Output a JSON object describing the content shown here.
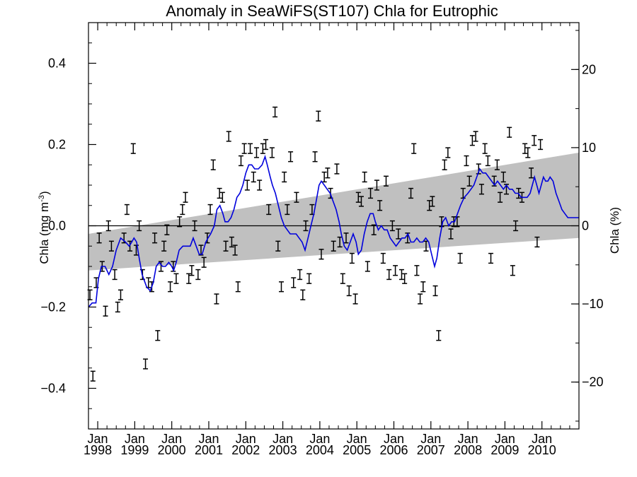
{
  "chart_data": {
    "type": "scatter",
    "title": "Anomaly in SeaWiFS(ST107) Chla for Eutrophic",
    "ylabel_left_main": "Chla (mg m",
    "ylabel_left_sup": "-3",
    "ylabel_left_close": ")",
    "ylabel_right": "Chla (%)",
    "x_range": [
      1997.75,
      2011.0
    ],
    "ylim": [
      -0.5,
      0.5
    ],
    "ylim_right": [
      -26,
      26
    ],
    "yticks_left": [
      {
        "value": -0.4,
        "label": "−0.4"
      },
      {
        "value": -0.2,
        "label": "−0.2"
      },
      {
        "value": 0.0,
        "label": "0.0"
      },
      {
        "value": 0.2,
        "label": "0.2"
      },
      {
        "value": 0.4,
        "label": "0.4"
      }
    ],
    "yticks_right": [
      {
        "value": -20,
        "label": "−20"
      },
      {
        "value": -10,
        "label": "−10"
      },
      {
        "value": 0,
        "label": "0"
      },
      {
        "value": 10,
        "label": "10"
      },
      {
        "value": 20,
        "label": "20"
      }
    ],
    "xticks": [
      {
        "value": 1998.0,
        "month": "Jan",
        "year": "1998"
      },
      {
        "value": 1999.0,
        "month": "Jan",
        "year": "1999"
      },
      {
        "value": 2000.0,
        "month": "Jan",
        "year": "2000"
      },
      {
        "value": 2001.0,
        "month": "Jan",
        "year": "2001"
      },
      {
        "value": 2002.0,
        "month": "Jan",
        "year": "2002"
      },
      {
        "value": 2003.0,
        "month": "Jan",
        "year": "2003"
      },
      {
        "value": 2004.0,
        "month": "Jan",
        "year": "2004"
      },
      {
        "value": 2005.0,
        "month": "Jan",
        "year": "2005"
      },
      {
        "value": 2006.0,
        "month": "Jan",
        "year": "2006"
      },
      {
        "value": 2007.0,
        "month": "Jan",
        "year": "2007"
      },
      {
        "value": 2008.0,
        "month": "Jan",
        "year": "2008"
      },
      {
        "value": 2009.0,
        "month": "Jan",
        "year": "2009"
      },
      {
        "value": 2010.0,
        "month": "Jan",
        "year": "2010"
      }
    ],
    "zero_line": 0.0,
    "trend_band": {
      "x": [
        1997.75,
        2011.0
      ],
      "upper": [
        -0.02,
        0.18
      ],
      "lower": [
        -0.11,
        -0.03
      ],
      "color": "#c0c0c0"
    },
    "points": [
      [
        1997.79,
        -0.17
      ],
      [
        1997.87,
        -0.37
      ],
      [
        1997.96,
        -0.14
      ],
      [
        1998.04,
        -0.03
      ],
      [
        1998.12,
        -0.1
      ],
      [
        1998.21,
        -0.21
      ],
      [
        1998.29,
        0.0
      ],
      [
        1998.37,
        -0.05
      ],
      [
        1998.46,
        -0.12
      ],
      [
        1998.54,
        -0.2
      ],
      [
        1998.62,
        -0.17
      ],
      [
        1998.71,
        -0.03
      ],
      [
        1998.79,
        0.04
      ],
      [
        1998.87,
        -0.05
      ],
      [
        1998.96,
        0.19
      ],
      [
        1999.04,
        -0.06
      ],
      [
        1999.12,
        0.0
      ],
      [
        1999.21,
        -0.12
      ],
      [
        1999.29,
        -0.34
      ],
      [
        1999.37,
        -0.14
      ],
      [
        1999.46,
        -0.15
      ],
      [
        1999.54,
        -0.03
      ],
      [
        1999.62,
        -0.27
      ],
      [
        1999.71,
        -0.1
      ],
      [
        1999.79,
        -0.05
      ],
      [
        1999.87,
        -0.01
      ],
      [
        1999.96,
        -0.15
      ],
      [
        2000.04,
        -0.1
      ],
      [
        2000.12,
        -0.13
      ],
      [
        2000.21,
        0.01
      ],
      [
        2000.29,
        0.04
      ],
      [
        2000.37,
        0.07
      ],
      [
        2000.46,
        -0.13
      ],
      [
        2000.54,
        -0.11
      ],
      [
        2000.62,
        0.0
      ],
      [
        2000.71,
        -0.12
      ],
      [
        2000.79,
        -0.06
      ],
      [
        2000.87,
        -0.09
      ],
      [
        2000.96,
        -0.03
      ],
      [
        2001.04,
        0.04
      ],
      [
        2001.12,
        0.15
      ],
      [
        2001.21,
        -0.18
      ],
      [
        2001.29,
        0.08
      ],
      [
        2001.37,
        0.07
      ],
      [
        2001.46,
        -0.05
      ],
      [
        2001.54,
        0.22
      ],
      [
        2001.62,
        -0.04
      ],
      [
        2001.71,
        -0.06
      ],
      [
        2001.79,
        -0.15
      ],
      [
        2001.87,
        0.16
      ],
      [
        2001.96,
        0.19
      ],
      [
        2002.04,
        0.1
      ],
      [
        2002.12,
        0.19
      ],
      [
        2002.21,
        0.12
      ],
      [
        2002.29,
        0.18
      ],
      [
        2002.37,
        0.1
      ],
      [
        2002.46,
        0.19
      ],
      [
        2002.54,
        0.2
      ],
      [
        2002.62,
        0.04
      ],
      [
        2002.71,
        0.18
      ],
      [
        2002.79,
        0.28
      ],
      [
        2002.87,
        -0.05
      ],
      [
        2002.96,
        -0.15
      ],
      [
        2003.04,
        0.12
      ],
      [
        2003.12,
        0.04
      ],
      [
        2003.21,
        0.17
      ],
      [
        2003.29,
        -0.14
      ],
      [
        2003.37,
        0.07
      ],
      [
        2003.46,
        -0.12
      ],
      [
        2003.54,
        -0.17
      ],
      [
        2003.62,
        0.0
      ],
      [
        2003.71,
        -0.13
      ],
      [
        2003.79,
        0.04
      ],
      [
        2003.87,
        0.17
      ],
      [
        2003.96,
        0.27
      ],
      [
        2004.04,
        -0.07
      ],
      [
        2004.12,
        0.12
      ],
      [
        2004.21,
        0.13
      ],
      [
        2004.29,
        0.08
      ],
      [
        2004.37,
        -0.05
      ],
      [
        2004.46,
        0.14
      ],
      [
        2004.54,
        -0.04
      ],
      [
        2004.62,
        -0.13
      ],
      [
        2004.71,
        -0.03
      ],
      [
        2004.79,
        -0.16
      ],
      [
        2004.87,
        -0.08
      ],
      [
        2004.96,
        -0.18
      ],
      [
        2005.04,
        0.07
      ],
      [
        2005.12,
        0.06
      ],
      [
        2005.21,
        0.12
      ],
      [
        2005.29,
        -0.1
      ],
      [
        2005.37,
        0.08
      ],
      [
        2005.46,
        -0.01
      ],
      [
        2005.54,
        0.1
      ],
      [
        2005.62,
        0.05
      ],
      [
        2005.71,
        -0.08
      ],
      [
        2005.79,
        0.11
      ],
      [
        2005.87,
        -0.12
      ],
      [
        2005.96,
        0.0
      ],
      [
        2006.04,
        -0.11
      ],
      [
        2006.12,
        -0.02
      ],
      [
        2006.21,
        -0.12
      ],
      [
        2006.29,
        -0.13
      ],
      [
        2006.37,
        -0.03
      ],
      [
        2006.46,
        0.08
      ],
      [
        2006.54,
        0.19
      ],
      [
        2006.62,
        -0.11
      ],
      [
        2006.71,
        -0.18
      ],
      [
        2006.79,
        -0.15
      ],
      [
        2006.87,
        -0.05
      ],
      [
        2006.96,
        0.05
      ],
      [
        2007.04,
        0.06
      ],
      [
        2007.12,
        -0.16
      ],
      [
        2007.21,
        -0.27
      ],
      [
        2007.29,
        0.01
      ],
      [
        2007.37,
        0.15
      ],
      [
        2007.46,
        0.18
      ],
      [
        2007.54,
        -0.02
      ],
      [
        2007.62,
        0.01
      ],
      [
        2007.71,
        0.01
      ],
      [
        2007.79,
        -0.08
      ],
      [
        2007.87,
        0.08
      ],
      [
        2007.96,
        0.16
      ],
      [
        2008.04,
        0.11
      ],
      [
        2008.12,
        0.21
      ],
      [
        2008.21,
        0.22
      ],
      [
        2008.29,
        0.14
      ],
      [
        2008.37,
        0.09
      ],
      [
        2008.46,
        0.19
      ],
      [
        2008.54,
        0.16
      ],
      [
        2008.62,
        -0.08
      ],
      [
        2008.71,
        0.11
      ],
      [
        2008.79,
        0.15
      ],
      [
        2008.87,
        0.07
      ],
      [
        2008.96,
        0.12
      ],
      [
        2009.04,
        0.09
      ],
      [
        2009.12,
        0.23
      ],
      [
        2009.21,
        -0.11
      ],
      [
        2009.29,
        0.0
      ],
      [
        2009.37,
        0.08
      ],
      [
        2009.46,
        0.07
      ],
      [
        2009.54,
        0.19
      ],
      [
        2009.62,
        0.18
      ],
      [
        2009.71,
        0.13
      ],
      [
        2009.79,
        0.21
      ],
      [
        2009.87,
        -0.04
      ],
      [
        2009.96,
        0.2
      ]
    ],
    "point_error": 0.012,
    "running_mean": [
      [
        1997.75,
        -0.2
      ],
      [
        1997.85,
        -0.19
      ],
      [
        1997.95,
        -0.19
      ],
      [
        1998.02,
        -0.13
      ],
      [
        1998.1,
        -0.1
      ],
      [
        1998.2,
        -0.1
      ],
      [
        1998.3,
        -0.12
      ],
      [
        1998.4,
        -0.1
      ],
      [
        1998.5,
        -0.06
      ],
      [
        1998.62,
        -0.03
      ],
      [
        1998.75,
        -0.04
      ],
      [
        1998.85,
        -0.05
      ],
      [
        1998.92,
        -0.04
      ],
      [
        1998.98,
        -0.03
      ],
      [
        1999.05,
        -0.04
      ],
      [
        1999.12,
        -0.08
      ],
      [
        1999.2,
        -0.12
      ],
      [
        1999.32,
        -0.15
      ],
      [
        1999.42,
        -0.16
      ],
      [
        1999.5,
        -0.14
      ],
      [
        1999.58,
        -0.1
      ],
      [
        1999.66,
        -0.09
      ],
      [
        1999.75,
        -0.1
      ],
      [
        1999.83,
        -0.1
      ],
      [
        1999.92,
        -0.09
      ],
      [
        2000.0,
        -0.1
      ],
      [
        2000.05,
        -0.11
      ],
      [
        2000.12,
        -0.09
      ],
      [
        2000.2,
        -0.06
      ],
      [
        2000.3,
        -0.05
      ],
      [
        2000.4,
        -0.05
      ],
      [
        2000.5,
        -0.05
      ],
      [
        2000.58,
        -0.03
      ],
      [
        2000.66,
        -0.05
      ],
      [
        2000.74,
        -0.07
      ],
      [
        2000.82,
        -0.07
      ],
      [
        2000.92,
        -0.04
      ],
      [
        2000.98,
        -0.03
      ],
      [
        2001.05,
        -0.02
      ],
      [
        2001.15,
        0.0
      ],
      [
        2001.22,
        0.04
      ],
      [
        2001.3,
        0.05
      ],
      [
        2001.38,
        0.03
      ],
      [
        2001.44,
        0.01
      ],
      [
        2001.52,
        0.01
      ],
      [
        2001.6,
        0.02
      ],
      [
        2001.68,
        0.04
      ],
      [
        2001.76,
        0.07
      ],
      [
        2001.84,
        0.08
      ],
      [
        2001.92,
        0.1
      ],
      [
        2002.0,
        0.13
      ],
      [
        2002.08,
        0.15
      ],
      [
        2002.16,
        0.15
      ],
      [
        2002.24,
        0.14
      ],
      [
        2002.34,
        0.14
      ],
      [
        2002.44,
        0.15
      ],
      [
        2002.52,
        0.17
      ],
      [
        2002.58,
        0.15
      ],
      [
        2002.66,
        0.12
      ],
      [
        2002.72,
        0.1
      ],
      [
        2002.8,
        0.08
      ],
      [
        2002.88,
        0.05
      ],
      [
        2002.96,
        0.02
      ],
      [
        2003.04,
        0.0
      ],
      [
        2003.12,
        -0.01
      ],
      [
        2003.2,
        -0.02
      ],
      [
        2003.28,
        -0.02
      ],
      [
        2003.36,
        -0.02
      ],
      [
        2003.44,
        -0.03
      ],
      [
        2003.52,
        -0.04
      ],
      [
        2003.6,
        -0.06
      ],
      [
        2003.68,
        -0.03
      ],
      [
        2003.76,
        0.0
      ],
      [
        2003.84,
        0.03
      ],
      [
        2003.92,
        0.07
      ],
      [
        2003.98,
        0.1
      ],
      [
        2004.04,
        0.11
      ],
      [
        2004.12,
        0.1
      ],
      [
        2004.2,
        0.09
      ],
      [
        2004.28,
        0.08
      ],
      [
        2004.36,
        0.06
      ],
      [
        2004.44,
        0.04
      ],
      [
        2004.52,
        0.01
      ],
      [
        2004.58,
        -0.02
      ],
      [
        2004.66,
        -0.05
      ],
      [
        2004.74,
        -0.06
      ],
      [
        2004.82,
        -0.04
      ],
      [
        2004.9,
        -0.02
      ],
      [
        2004.98,
        -0.04
      ],
      [
        2005.04,
        -0.07
      ],
      [
        2005.12,
        -0.06
      ],
      [
        2005.2,
        -0.02
      ],
      [
        2005.28,
        0.01
      ],
      [
        2005.36,
        0.03
      ],
      [
        2005.44,
        0.03
      ],
      [
        2005.5,
        0.01
      ],
      [
        2005.58,
        -0.01
      ],
      [
        2005.66,
        0.0
      ],
      [
        2005.74,
        -0.01
      ],
      [
        2005.82,
        -0.01
      ],
      [
        2005.9,
        -0.03
      ],
      [
        2005.98,
        -0.04
      ],
      [
        2006.06,
        -0.05
      ],
      [
        2006.14,
        -0.04
      ],
      [
        2006.22,
        -0.03
      ],
      [
        2006.3,
        -0.03
      ],
      [
        2006.38,
        -0.02
      ],
      [
        2006.46,
        -0.04
      ],
      [
        2006.54,
        -0.04
      ],
      [
        2006.62,
        -0.03
      ],
      [
        2006.7,
        -0.04
      ],
      [
        2006.78,
        -0.04
      ],
      [
        2006.86,
        -0.03
      ],
      [
        2006.94,
        -0.04
      ],
      [
        2007.02,
        -0.07
      ],
      [
        2007.1,
        -0.1
      ],
      [
        2007.16,
        -0.08
      ],
      [
        2007.24,
        -0.03
      ],
      [
        2007.32,
        0.01
      ],
      [
        2007.4,
        0.02
      ],
      [
        2007.48,
        0.0
      ],
      [
        2007.56,
        0.01
      ],
      [
        2007.64,
        0.01
      ],
      [
        2007.72,
        0.03
      ],
      [
        2007.8,
        0.05
      ],
      [
        2007.9,
        0.07
      ],
      [
        2008.0,
        0.08
      ],
      [
        2008.08,
        0.09
      ],
      [
        2008.16,
        0.1
      ],
      [
        2008.24,
        0.12
      ],
      [
        2008.32,
        0.14
      ],
      [
        2008.4,
        0.13
      ],
      [
        2008.48,
        0.13
      ],
      [
        2008.56,
        0.12
      ],
      [
        2008.64,
        0.11
      ],
      [
        2008.72,
        0.1
      ],
      [
        2008.8,
        0.11
      ],
      [
        2008.88,
        0.1
      ],
      [
        2008.96,
        0.09
      ],
      [
        2009.04,
        0.1
      ],
      [
        2009.12,
        0.09
      ],
      [
        2009.2,
        0.09
      ],
      [
        2009.28,
        0.08
      ],
      [
        2009.36,
        0.08
      ],
      [
        2009.44,
        0.07
      ],
      [
        2009.52,
        0.07
      ],
      [
        2009.6,
        0.07
      ],
      [
        2009.68,
        0.08
      ],
      [
        2009.74,
        0.1
      ],
      [
        2009.8,
        0.12
      ],
      [
        2009.86,
        0.1
      ],
      [
        2009.92,
        0.08
      ],
      [
        2009.98,
        0.1
      ],
      [
        2010.04,
        0.12
      ],
      [
        2010.1,
        0.11
      ],
      [
        2010.16,
        0.11
      ],
      [
        2010.22,
        0.12
      ],
      [
        2010.3,
        0.11
      ],
      [
        2010.38,
        0.08
      ],
      [
        2010.46,
        0.06
      ],
      [
        2010.54,
        0.04
      ],
      [
        2010.62,
        0.03
      ],
      [
        2010.7,
        0.02
      ],
      [
        2010.8,
        0.02
      ],
      [
        2010.9,
        0.02
      ],
      [
        2011.0,
        0.02
      ]
    ],
    "line_color": "#0000dd"
  }
}
